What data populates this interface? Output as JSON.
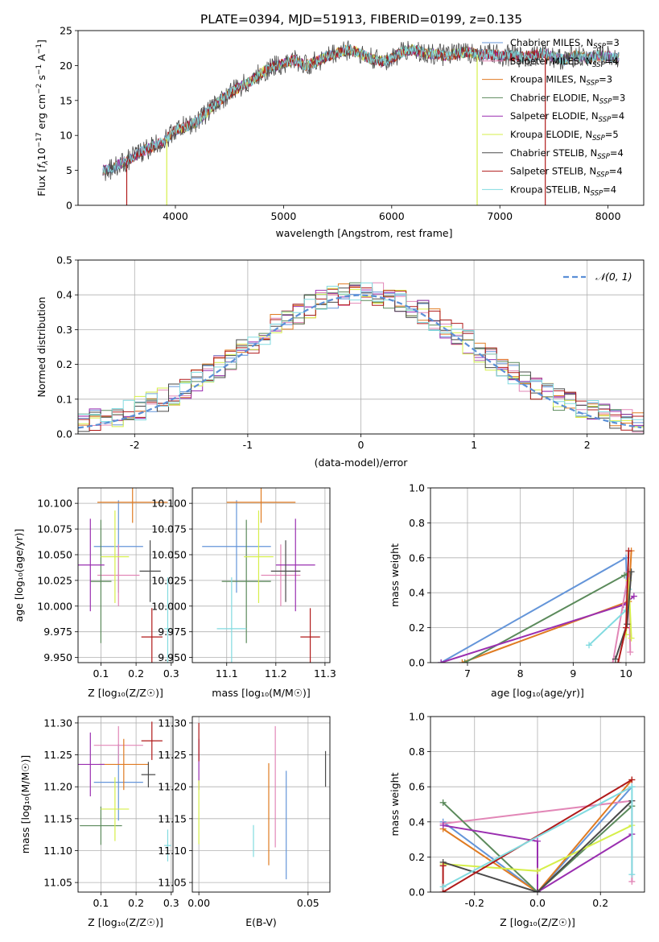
{
  "figure": {
    "title": "PLATE=0394, MJD=51913, FIBERID=0199, z=0.135"
  },
  "colors": {
    "chabrier_miles": "#6495d9",
    "salpeter_miles": "#e287b7",
    "kroupa_miles": "#e07b22",
    "chabrier_elodie": "#5b8a5b",
    "salpeter_elodie": "#9a2fb0",
    "kroupa_elodie": "#d6ef4a",
    "chabrier_stelib": "#4a4a4a",
    "salpeter_stelib": "#b01a1a",
    "kroupa_stelib": "#82dbe0",
    "normal_curve": "#5b8fd6"
  },
  "chart_data": [
    {
      "id": "spectrum",
      "type": "line",
      "title": "PLATE=0394, MJD=51913, FIBERID=0199, z=0.135",
      "xlabel": "wavelength [Angstrom, rest frame]",
      "ylabel_main": "Flux [",
      "ylabel_f": "f",
      "ylabel_sub": "λ",
      "ylabel_rest": "10",
      "ylabel_exp": "−17",
      "ylabel_unit": " erg cm",
      "ylabel_exp2": "−2",
      "ylabel_unit2": " s",
      "ylabel_exp3": "−1",
      "ylabel_unit3": " A",
      "ylabel_exp4": "−1",
      "ylabel_close": "]",
      "xlim": [
        3100,
        8330
      ],
      "ylim": [
        0,
        25
      ],
      "xticks": [
        4000,
        5000,
        6000,
        7000,
        8000
      ],
      "yticks": [
        0,
        5,
        10,
        15,
        20,
        25
      ],
      "legend_position": "top-right",
      "legend": [
        {
          "prefix": "Chabrier MILES, N",
          "sub": "SSP",
          "suffix": "=3",
          "color_key": "chabrier_miles"
        },
        {
          "prefix": "Salpeter MILES, N",
          "sub": "SSP",
          "suffix": "=4",
          "color_key": "salpeter_miles"
        },
        {
          "prefix": "Kroupa MILES, N",
          "sub": "SSP",
          "suffix": "=3",
          "color_key": "kroupa_miles"
        },
        {
          "prefix": "Chabrier ELODIE, N",
          "sub": "SSP",
          "suffix": "=3",
          "color_key": "chabrier_elodie"
        },
        {
          "prefix": "Salpeter ELODIE, N",
          "sub": "SSP",
          "suffix": "=4",
          "color_key": "salpeter_elodie"
        },
        {
          "prefix": "Kroupa ELODIE, N",
          "sub": "SSP",
          "suffix": "=5",
          "color_key": "kroupa_elodie"
        },
        {
          "prefix": "Chabrier STELIB, N",
          "sub": "SSP",
          "suffix": "=4",
          "color_key": "chabrier_stelib"
        },
        {
          "prefix": "Salpeter STELIB, N",
          "sub": "SSP",
          "suffix": "=4",
          "color_key": "salpeter_stelib"
        },
        {
          "prefix": "Kroupa STELIB, N",
          "sub": "SSP",
          "suffix": "=4",
          "color_key": "kroupa_stelib"
        }
      ],
      "x": [
        3330,
        3400,
        3500,
        3600,
        3700,
        3800,
        3900,
        3950,
        4000,
        4100,
        4200,
        4300,
        4400,
        4500,
        4600,
        4700,
        4800,
        4900,
        5000,
        5100,
        5200,
        5300,
        5400,
        5500,
        5600,
        5700,
        5800,
        5900,
        6000,
        6100,
        6200,
        6300,
        6400,
        6500,
        6600,
        6700,
        6800,
        6900,
        7000,
        7100,
        7200,
        7300,
        7400,
        7500,
        7600,
        7700,
        7800,
        7900,
        8000,
        8100
      ],
      "y": [
        5.0,
        5.2,
        6.0,
        6.8,
        7.8,
        8.5,
        9.2,
        10.0,
        10.8,
        11.3,
        12.0,
        13.5,
        14.8,
        16.0,
        17.0,
        17.8,
        19.0,
        19.8,
        20.3,
        20.8,
        20.0,
        20.5,
        21.3,
        21.8,
        22.3,
        21.8,
        21.0,
        20.6,
        21.0,
        22.0,
        22.3,
        21.8,
        21.6,
        21.4,
        21.7,
        22.0,
        21.5,
        21.6,
        21.4,
        21.5,
        21.2,
        21.4,
        21.7,
        21.2,
        20.8,
        21.5,
        21.0,
        21.4,
        21.3,
        21.1
      ],
      "fit_cutoffs": [
        {
          "start": 3550,
          "end": 7420,
          "color_key": "salpeter_stelib"
        },
        {
          "start": 3920,
          "end": 6790,
          "color_key": "kroupa_elodie"
        }
      ]
    },
    {
      "id": "residuals",
      "type": "area",
      "xlabel": "(data-model)/error",
      "ylabel": "Normed distribution",
      "xlim": [
        -2.5,
        2.5
      ],
      "ylim": [
        0,
        0.5
      ],
      "xticks": [
        -2,
        -1,
        0,
        1,
        2
      ],
      "yticks": [
        0.0,
        0.1,
        0.2,
        0.3,
        0.4,
        0.5
      ],
      "legend_position": "top-right",
      "legend_label": "𝒩(0, 1)",
      "bin_width": 0.1,
      "x_start": -2.5,
      "series": [
        {
          "color_key": "chabrier_miles",
          "values": [
            0.035,
            0.04,
            0.05,
            0.06,
            0.07,
            0.08,
            0.09,
            0.1,
            0.11,
            0.12,
            0.13,
            0.15,
            0.165,
            0.18,
            0.195,
            0.21,
            0.22,
            0.24,
            0.25,
            0.265,
            0.28,
            0.3,
            0.32,
            0.33,
            0.34,
            0.35,
            0.36,
            0.37,
            0.39,
            0.4,
            0.42,
            0.41,
            0.4,
            0.39,
            0.38,
            0.37,
            0.36,
            0.35,
            0.34,
            0.33,
            0.32,
            0.31,
            0.3,
            0.28,
            0.26,
            0.24,
            0.22,
            0.2,
            0.19,
            0.17
          ]
        },
        {
          "color_key": "kroupa_stelib",
          "values": [
            0.03,
            0.035,
            0.045,
            0.055,
            0.065,
            0.08,
            0.09,
            0.1,
            0.12,
            0.13,
            0.14,
            0.15,
            0.17,
            0.19,
            0.2,
            0.22,
            0.23,
            0.24,
            0.26,
            0.28,
            0.3,
            0.31,
            0.33,
            0.34,
            0.35,
            0.36,
            0.38,
            0.39,
            0.38,
            0.37,
            0.36,
            0.35,
            0.34,
            0.33,
            0.33,
            0.32,
            0.31,
            0.29,
            0.27,
            0.25,
            0.23,
            0.21,
            0.2,
            0.18,
            0.16,
            0.14,
            0.12,
            0.1,
            0.08,
            0.07
          ]
        }
      ],
      "normal_curve": true
    },
    {
      "id": "age-vs-Z",
      "type": "scatter",
      "xlabel": "Z [log₁₀(Z/Z☉)]",
      "ylabel": "age  [log₁₀(age/yr)]",
      "xlim": [
        0.035,
        0.305
      ],
      "ylim": [
        9.945,
        10.115
      ],
      "xticks": [
        0.1,
        0.2,
        0.3
      ],
      "yticks": [
        9.95,
        9.975,
        10.0,
        10.025,
        10.05,
        10.075,
        10.1
      ],
      "points": [
        {
          "x": 0.15,
          "y": 10.058,
          "xerr": 0.07,
          "yerr": 0.045,
          "color_key": "chabrier_miles"
        },
        {
          "x": 0.15,
          "y": 10.03,
          "xerr": 0.06,
          "yerr": 0.03,
          "color_key": "salpeter_miles"
        },
        {
          "x": 0.19,
          "y": 10.101,
          "xerr": 0.1,
          "yerr": 0.02,
          "color_key": "kroupa_miles"
        },
        {
          "x": 0.1,
          "y": 10.024,
          "xerr": 0.03,
          "yerr": 0.06,
          "color_key": "chabrier_elodie"
        },
        {
          "x": 0.07,
          "y": 10.04,
          "xerr": 0.04,
          "yerr": 0.045,
          "color_key": "salpeter_elodie"
        },
        {
          "x": 0.14,
          "y": 10.048,
          "xerr": 0.04,
          "yerr": 0.045,
          "color_key": "kroupa_elodie"
        },
        {
          "x": 0.24,
          "y": 10.034,
          "xerr": 0.03,
          "yerr": 0.03,
          "color_key": "chabrier_stelib"
        },
        {
          "x": 0.245,
          "y": 9.97,
          "xerr": 0.03,
          "yerr": 0.028,
          "color_key": "salpeter_stelib"
        },
        {
          "x": 0.29,
          "y": 9.978,
          "xerr": 0.01,
          "yerr": 0.05,
          "color_key": "kroupa_stelib"
        }
      ]
    },
    {
      "id": "age-vs-mass",
      "type": "scatter",
      "xlabel": "mass [log₁₀(M/M☉)]",
      "xlim": [
        11.03,
        11.31
      ],
      "ylim": [
        9.945,
        10.115
      ],
      "xticks": [
        11.1,
        11.2,
        11.3
      ],
      "yticks": [
        9.95,
        9.975,
        10.0,
        10.025,
        10.05,
        10.075,
        10.1
      ],
      "points": [
        {
          "x": 11.12,
          "y": 10.058,
          "xerr": 0.07,
          "yerr": 0.045,
          "color_key": "chabrier_miles"
        },
        {
          "x": 11.21,
          "y": 10.03,
          "xerr": 0.04,
          "yerr": 0.03,
          "color_key": "salpeter_miles"
        },
        {
          "x": 11.17,
          "y": 10.101,
          "xerr": 0.07,
          "yerr": 0.02,
          "color_key": "kroupa_miles"
        },
        {
          "x": 11.14,
          "y": 10.024,
          "xerr": 0.05,
          "yerr": 0.06,
          "color_key": "chabrier_elodie"
        },
        {
          "x": 11.24,
          "y": 10.04,
          "xerr": 0.04,
          "yerr": 0.045,
          "color_key": "salpeter_elodie"
        },
        {
          "x": 11.165,
          "y": 10.048,
          "xerr": 0.03,
          "yerr": 0.045,
          "color_key": "kroupa_elodie"
        },
        {
          "x": 11.22,
          "y": 10.034,
          "xerr": 0.03,
          "yerr": 0.03,
          "color_key": "chabrier_stelib"
        },
        {
          "x": 11.27,
          "y": 9.97,
          "xerr": 0.02,
          "yerr": 0.028,
          "color_key": "salpeter_stelib"
        },
        {
          "x": 11.11,
          "y": 9.978,
          "xerr": 0.03,
          "yerr": 0.05,
          "color_key": "kroupa_stelib"
        }
      ]
    },
    {
      "id": "weight-vs-age",
      "type": "line",
      "xlabel": "age  [log₁₀(age/yr)]",
      "ylabel": "mass weight",
      "xlim": [
        6.3,
        10.35
      ],
      "ylim": [
        0,
        1.0
      ],
      "xticks": [
        7,
        8,
        9,
        10
      ],
      "yticks": [
        0.0,
        0.2,
        0.4,
        0.6,
        0.8,
        1.0
      ],
      "series": [
        {
          "color_key": "chabrier_miles",
          "x": [
            6.5,
            10.0,
            10.02
          ],
          "y": [
            0.0,
            0.6,
            0.4
          ]
        },
        {
          "color_key": "kroupa_miles",
          "x": [
            6.9,
            10.05,
            10.1
          ],
          "y": [
            0.0,
            0.35,
            0.64
          ]
        },
        {
          "color_key": "chabrier_elodie",
          "x": [
            6.95,
            9.97,
            10.05
          ],
          "y": [
            0.0,
            0.5,
            0.51
          ]
        },
        {
          "color_key": "salpeter_elodie",
          "x": [
            6.5,
            9.95,
            10.15
          ],
          "y": [
            0.0,
            0.33,
            0.38
          ]
        },
        {
          "color_key": "salpeter_miles",
          "x": [
            9.75,
            10.05,
            10.08
          ],
          "y": [
            0.0,
            0.52,
            0.06
          ]
        },
        {
          "color_key": "kroupa_stelib",
          "x": [
            9.3,
            10.0,
            10.05
          ],
          "y": [
            0.1,
            0.3,
            0.42
          ]
        },
        {
          "color_key": "kroupa_elodie",
          "x": [
            10.0,
            10.05,
            10.1
          ],
          "y": [
            0.16,
            0.47,
            0.14
          ]
        },
        {
          "color_key": "chabrier_stelib",
          "x": [
            9.8,
            10.02,
            10.1
          ],
          "y": [
            0.02,
            0.22,
            0.52
          ]
        },
        {
          "color_key": "salpeter_stelib",
          "x": [
            9.85,
            10.0,
            10.05
          ],
          "y": [
            0.0,
            0.2,
            0.64
          ]
        }
      ]
    },
    {
      "id": "mass-vs-Z",
      "type": "scatter",
      "xlabel": "Z [log₁₀(Z/Z☉)]",
      "ylabel": "mass [log₁₀(M/M☉)]",
      "xlim": [
        0.035,
        0.305
      ],
      "ylim": [
        11.035,
        11.31
      ],
      "xticks": [
        0.1,
        0.2,
        0.3
      ],
      "yticks": [
        11.05,
        11.1,
        11.15,
        11.2,
        11.25,
        11.3
      ],
      "points": [
        {
          "x": 0.15,
          "y": 11.207,
          "xerr": 0.07,
          "yerr": 0.06,
          "color_key": "chabrier_miles"
        },
        {
          "x": 0.15,
          "y": 11.265,
          "xerr": 0.07,
          "yerr": 0.03,
          "color_key": "salpeter_miles"
        },
        {
          "x": 0.165,
          "y": 11.235,
          "xerr": 0.07,
          "yerr": 0.04,
          "color_key": "kroupa_miles"
        },
        {
          "x": 0.1,
          "y": 11.139,
          "xerr": 0.06,
          "yerr": 0.03,
          "color_key": "chabrier_elodie"
        },
        {
          "x": 0.07,
          "y": 11.235,
          "xerr": 0.04,
          "yerr": 0.05,
          "color_key": "salpeter_elodie"
        },
        {
          "x": 0.14,
          "y": 11.165,
          "xerr": 0.04,
          "yerr": 0.05,
          "color_key": "kroupa_elodie"
        },
        {
          "x": 0.235,
          "y": 11.219,
          "xerr": 0.02,
          "yerr": 0.02,
          "color_key": "chabrier_stelib"
        },
        {
          "x": 0.245,
          "y": 11.272,
          "xerr": 0.03,
          "yerr": 0.03,
          "color_key": "salpeter_stelib"
        },
        {
          "x": 0.29,
          "y": 11.108,
          "xerr": 0.01,
          "yerr": 0.025,
          "color_key": "kroupa_stelib"
        }
      ]
    },
    {
      "id": "mass-vs-ebv",
      "type": "scatter",
      "xlabel": "E(B-V)",
      "xlim": [
        -0.003,
        0.06
      ],
      "ylim": [
        11.035,
        11.31
      ],
      "xticks": [
        0.0,
        0.05
      ],
      "yticks": [
        11.05,
        11.1,
        11.15,
        11.2,
        11.25,
        11.3
      ],
      "points": [
        {
          "x": 0.04,
          "y": 11.14,
          "xerr": 0.0,
          "yerr": 0.085,
          "color_key": "chabrier_miles"
        },
        {
          "x": 0.035,
          "y": 11.2,
          "xerr": 0.0,
          "yerr": 0.095,
          "color_key": "salpeter_miles"
        },
        {
          "x": 0.032,
          "y": 11.157,
          "xerr": 0.0,
          "yerr": 0.08,
          "color_key": "kroupa_miles"
        },
        {
          "x": 0.0,
          "y": 11.235,
          "xerr": 0.0,
          "yerr": 0.04,
          "color_key": "salpeter_elodie"
        },
        {
          "x": 0.0,
          "y": 11.16,
          "xerr": 0.0,
          "yerr": 0.05,
          "color_key": "kroupa_elodie"
        },
        {
          "x": 0.058,
          "y": 11.228,
          "xerr": 0.0,
          "yerr": 0.028,
          "color_key": "chabrier_stelib"
        },
        {
          "x": 0.0,
          "y": 11.27,
          "xerr": 0.0,
          "yerr": 0.03,
          "color_key": "salpeter_stelib"
        },
        {
          "x": 0.025,
          "y": 11.115,
          "xerr": 0.0,
          "yerr": 0.025,
          "color_key": "kroupa_stelib"
        }
      ]
    },
    {
      "id": "weight-vs-Z",
      "type": "line",
      "xlabel": "Z [log₁₀(Z/Z☉)]",
      "ylabel": "mass weight",
      "xlim": [
        -0.34,
        0.34
      ],
      "ylim": [
        0,
        1.0
      ],
      "xticks": [
        -0.2,
        0.0,
        0.2
      ],
      "yticks": [
        0.0,
        0.2,
        0.4,
        0.6,
        0.8,
        1.0
      ],
      "series": [
        {
          "color_key": "chabrier_miles",
          "x": [
            -0.3,
            0.0,
            0.3
          ],
          "y": [
            0.4,
            0.0,
            0.6
          ]
        },
        {
          "color_key": "salpeter_miles",
          "x": [
            -0.3,
            0.3,
            0.3
          ],
          "y": [
            0.39,
            0.52,
            0.06
          ]
        },
        {
          "color_key": "kroupa_miles",
          "x": [
            -0.3,
            0.0,
            0.3
          ],
          "y": [
            0.36,
            0.0,
            0.64
          ]
        },
        {
          "color_key": "chabrier_elodie",
          "x": [
            -0.3,
            0.0,
            0.3
          ],
          "y": [
            0.51,
            0.0,
            0.49
          ]
        },
        {
          "color_key": "salpeter_elodie",
          "x": [
            -0.3,
            0.0,
            0.0,
            0.3
          ],
          "y": [
            0.38,
            0.29,
            0.0,
            0.33
          ]
        },
        {
          "color_key": "kroupa_elodie",
          "x": [
            -0.3,
            0.0,
            0.3
          ],
          "y": [
            0.16,
            0.12,
            0.38
          ]
        },
        {
          "color_key": "chabrier_stelib",
          "x": [
            -0.3,
            0.0,
            0.3
          ],
          "y": [
            0.17,
            0.0,
            0.52
          ]
        },
        {
          "color_key": "salpeter_stelib",
          "x": [
            -0.3,
            -0.3,
            0.3
          ],
          "y": [
            0.15,
            0.0,
            0.64
          ]
        },
        {
          "color_key": "kroupa_stelib",
          "x": [
            -0.3,
            0.3,
            0.3
          ],
          "y": [
            0.03,
            0.6,
            0.1
          ]
        }
      ]
    }
  ]
}
